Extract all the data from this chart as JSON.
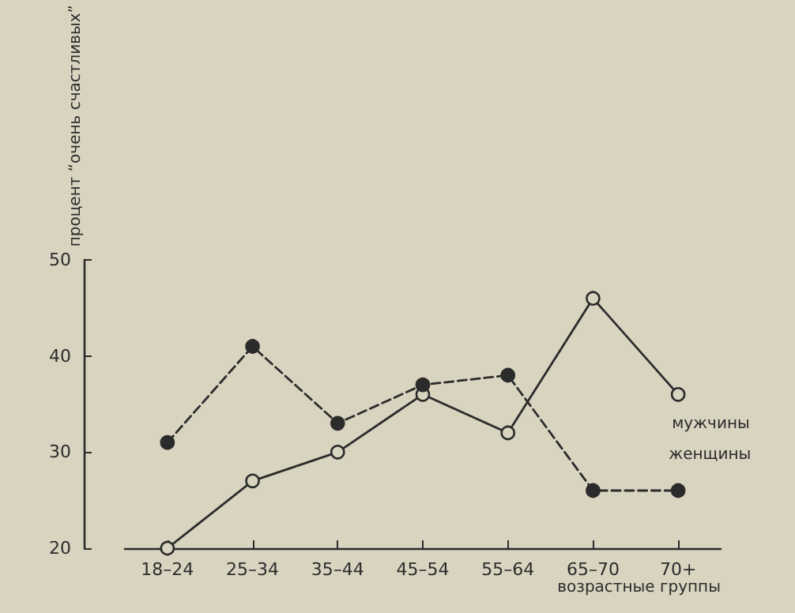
{
  "chart_data": {
    "type": "line",
    "xlabel": "возрастные группы",
    "ylabel": "процент “очень счастливых”",
    "categories": [
      "18–24",
      "25–34",
      "35–44",
      "45–54",
      "55–64",
      "65–70",
      "70+"
    ],
    "series": [
      {
        "name": "мужчины",
        "color": "#2b2b2b",
        "line_style": "solid",
        "marker": "circle",
        "values": [
          20,
          27,
          30,
          36,
          32,
          46,
          36
        ]
      },
      {
        "name": "женщины",
        "color": "#2b2b2b",
        "line_style": "dashed",
        "marker": "circle",
        "values": [
          31,
          41,
          33,
          37,
          38,
          26,
          26
        ]
      }
    ],
    "ylim": [
      20,
      50
    ],
    "yticks": [
      20,
      30,
      40,
      50
    ],
    "grid": false,
    "legend": false
  }
}
